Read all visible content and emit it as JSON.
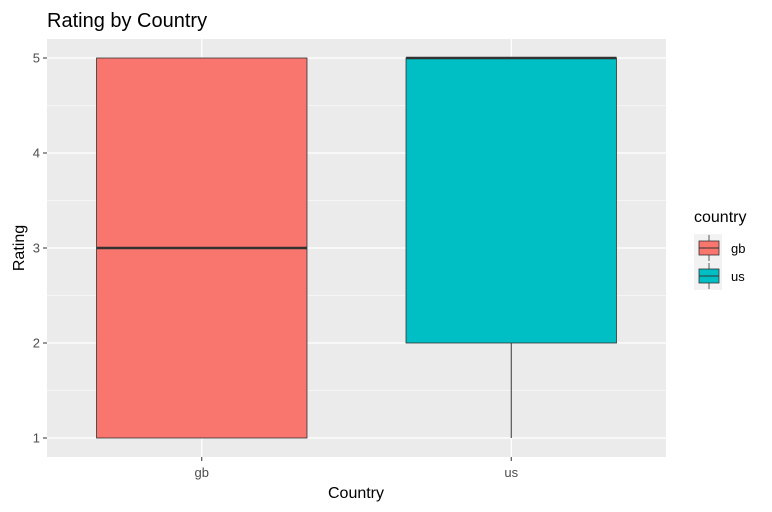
{
  "chart_data": {
    "type": "box",
    "title": "Rating by Country",
    "xlabel": "Country",
    "ylabel": "Rating",
    "categories": [
      "gb",
      "us"
    ],
    "ylim": [
      0.8,
      5.2
    ],
    "y_ticks": [
      1,
      2,
      3,
      4,
      5
    ],
    "grid": true,
    "legend": {
      "title": "country",
      "placement": "right",
      "entries": [
        "gb",
        "us"
      ]
    },
    "boxes": [
      {
        "category": "gb",
        "min": 1,
        "q1": 1,
        "median": 3,
        "q3": 5,
        "max": 5,
        "color": "#F8766D"
      },
      {
        "category": "us",
        "min": 1,
        "q1": 2,
        "median": 5,
        "q3": 5,
        "max": 5,
        "color": "#00BFC4"
      }
    ]
  },
  "colors": {
    "panel_background": "#EBEBEB",
    "grid_major": "#FFFFFF",
    "box_outline": "#333333"
  }
}
